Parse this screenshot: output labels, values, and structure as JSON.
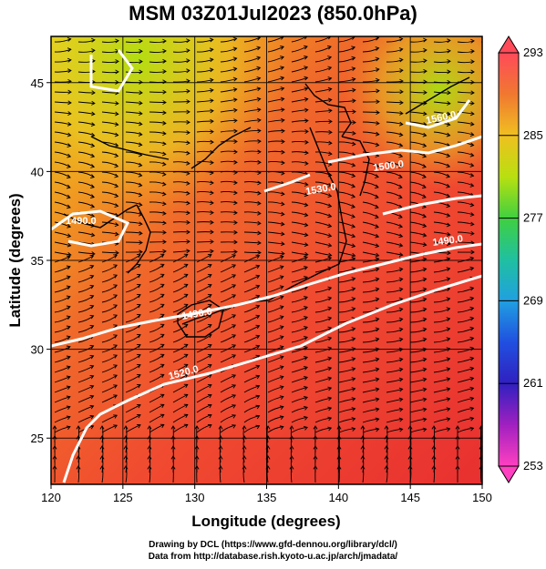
{
  "title": "MSM 03Z01Jul2023 (850.0hPa)",
  "axes": {
    "x_label": "Longitude (degrees)",
    "y_label": "Latitude (degrees)",
    "x_ticks": [
      "120",
      "125",
      "130",
      "135",
      "140",
      "145",
      "150"
    ],
    "y_ticks": [
      "25",
      "30",
      "35",
      "40",
      "45"
    ]
  },
  "colorbar": {
    "ticks": [
      "293",
      "285",
      "277",
      "269",
      "261",
      "253"
    ],
    "colors": [
      "#ff4a5a",
      "#f07830",
      "#f0c020",
      "#b8e010",
      "#40d040",
      "#20c0a0",
      "#20a0e0",
      "#2050e0",
      "#3020c0",
      "#a020c0",
      "#ff40c0"
    ]
  },
  "contour_labels": [
    "1560.0",
    "1530.0",
    "1500.0",
    "1490.0",
    "1490.0",
    "1490.0",
    "1520.0"
  ],
  "credits": {
    "line1": "Drawing by DCL (https://www.gfd-dennou.org/library/dcl/)",
    "line2": "Data from http://database.rish.kyoto-u.ac.jp/arch/jmadata/"
  },
  "chart_data": {
    "type": "heatmap",
    "title": "MSM 03Z01Jul2023 (850.0hPa)",
    "xlabel": "Longitude (degrees)",
    "ylabel": "Latitude (degrees)",
    "xlim": [
      120,
      150
    ],
    "ylim": [
      22.4,
      47.6
    ],
    "color_range": [
      253,
      293
    ],
    "grid": true,
    "legend": "colorbar-right",
    "contours": [
      1490,
      1500,
      1520,
      1530,
      1560
    ]
  }
}
